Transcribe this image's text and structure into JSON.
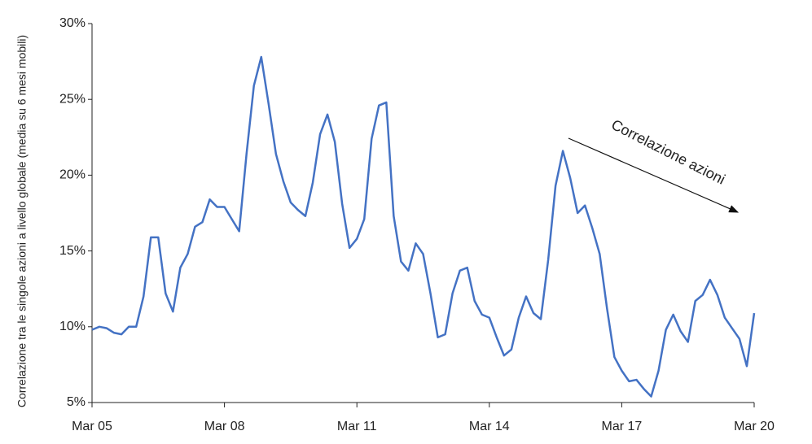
{
  "chart_data": {
    "type": "line",
    "y_axis_label": "Correlazione tra le singole azioni a livello globale (media su 6 mesi mobili)",
    "annotation": "Correlazione azioni",
    "categories": [
      "Mar 05",
      null,
      null,
      null,
      null,
      null,
      null,
      null,
      null,
      null,
      null,
      null,
      null,
      null,
      null,
      null,
      null,
      null,
      "Mar 08",
      null,
      null,
      null,
      null,
      null,
      null,
      null,
      null,
      null,
      null,
      null,
      null,
      null,
      null,
      null,
      null,
      null,
      "Mar 11",
      null,
      null,
      null,
      null,
      null,
      null,
      null,
      null,
      null,
      null,
      null,
      null,
      null,
      null,
      null,
      null,
      null,
      "Mar 14",
      null,
      null,
      null,
      null,
      null,
      null,
      null,
      null,
      null,
      null,
      null,
      null,
      null,
      null,
      null,
      null,
      null,
      "Mar 17",
      null,
      null,
      null,
      null,
      null,
      null,
      null,
      null,
      null,
      null,
      null,
      null,
      null,
      null,
      null,
      null,
      null,
      "Mar 20"
    ],
    "series": [
      {
        "color": "#4472c4",
        "values": [
          9.8,
          10.0,
          9.9,
          9.6,
          9.5,
          10.0,
          10.0,
          12.0,
          15.9,
          15.9,
          12.2,
          11.0,
          13.9,
          14.8,
          16.6,
          16.9,
          18.4,
          17.9,
          17.9,
          17.1,
          16.3,
          21.4,
          25.9,
          27.8,
          24.7,
          21.4,
          19.6,
          18.2,
          17.7,
          17.3,
          19.5,
          22.7,
          24.0,
          22.2,
          18.1,
          15.2,
          15.8,
          17.1,
          22.4,
          24.6,
          24.8,
          17.3,
          14.3,
          13.7,
          15.5,
          14.8,
          12.2,
          9.3,
          9.5,
          12.2,
          13.7,
          13.9,
          11.7,
          10.8,
          10.6,
          9.3,
          8.1,
          8.5,
          10.6,
          12.0,
          10.9,
          10.5,
          14.4,
          19.3,
          21.6,
          19.8,
          17.5,
          18.0,
          16.5,
          14.8,
          11.2,
          8.0,
          7.1,
          6.4,
          6.5,
          5.9,
          5.4,
          7.1,
          9.8,
          10.8,
          9.7,
          9.0,
          11.7,
          12.1,
          13.1,
          12.1,
          10.6,
          9.9,
          9.2,
          7.4,
          10.9
        ]
      }
    ],
    "ylim": [
      5,
      30
    ],
    "yticks": [
      {
        "value": 5,
        "label": "5%"
      },
      {
        "value": 10,
        "label": "10%"
      },
      {
        "value": 15,
        "label": "15%"
      },
      {
        "value": 20,
        "label": "20%"
      },
      {
        "value": 25,
        "label": "25%"
      },
      {
        "value": 30,
        "label": "30%"
      }
    ],
    "grid": false
  }
}
